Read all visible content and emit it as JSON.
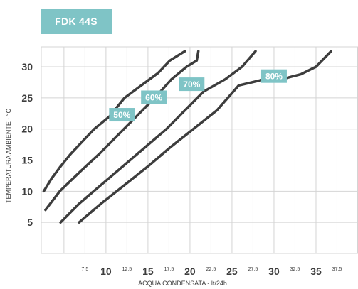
{
  "chart_data": {
    "type": "line",
    "title": "FDK 44S",
    "xlabel": "ACQUA CONDENSATA - lt/24h",
    "ylabel": "TEMPERATURA AMBIENTE - °C",
    "xlim": [
      2.3,
      40.0
    ],
    "ylim": [
      0,
      33.2
    ],
    "x_major_ticks": [
      "10",
      "15",
      "20",
      "25",
      "30",
      "35"
    ],
    "x_minor_ticks": [
      "7,5",
      "12,5",
      "17,5",
      "22,5",
      "27,5",
      "32,5",
      "37,5"
    ],
    "y_ticks": [
      "5",
      "10",
      "15",
      "20",
      "25",
      "30"
    ],
    "grid": true,
    "series": [
      {
        "name": "50%",
        "x": [
          2.6,
          3.5,
          4.6,
          5.8,
          7.2,
          8.6,
          10.4,
          12.2,
          14.2,
          16.2,
          17.6,
          19.4
        ],
        "y": [
          10,
          12,
          14,
          16,
          18,
          20,
          22,
          25,
          27,
          29,
          31,
          32.5
        ]
      },
      {
        "name": "60%",
        "x": [
          2.8,
          4.5,
          6.8,
          9.2,
          11.4,
          13.6,
          15.8,
          17.8,
          19.6,
          20.8,
          21.0
        ],
        "y": [
          7,
          10,
          13,
          16,
          19,
          22,
          25,
          28,
          30,
          31,
          32.5
        ]
      },
      {
        "name": "70%",
        "x": [
          4.6,
          6.8,
          9.4,
          12.0,
          14.6,
          17.2,
          19.4,
          21.6,
          24.2,
          26.2,
          27.8
        ],
        "y": [
          5,
          8,
          11,
          14,
          17,
          20,
          23,
          26,
          28,
          30,
          32.5
        ]
      },
      {
        "name": "80%",
        "x": [
          6.8,
          9.4,
          12.2,
          15.0,
          17.6,
          20.4,
          23.2,
          25.8,
          28.6,
          31.2,
          33.2,
          35.0,
          36.8
        ],
        "y": [
          5,
          8,
          11,
          14,
          17,
          20,
          23,
          27,
          27.9,
          28.1,
          28.8,
          30.0,
          32.5
        ]
      }
    ],
    "colors": {
      "line": "#3d3d3d",
      "label_box": "#7fc4c6",
      "label_text": "#ffffff",
      "grid": "#d4d4d4",
      "title_box": "#7fc4c6"
    }
  }
}
